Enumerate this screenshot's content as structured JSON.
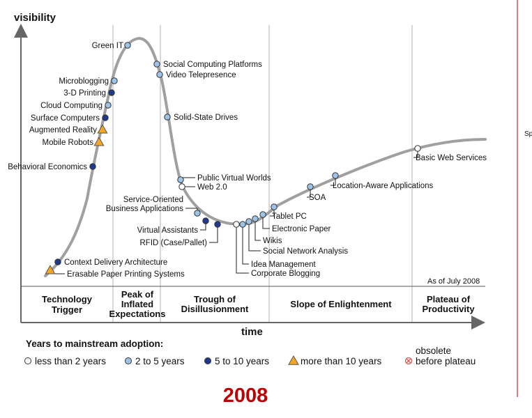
{
  "chart_data": {
    "type": "line",
    "title": "",
    "ylabel": "visibility",
    "xlabel": "time",
    "as_of": "As of July 2008",
    "year": "2008",
    "colors": {
      "curve": "#a0a0a0",
      "less_than_2": "#ffffff",
      "2_to_5": "#9dc3e6",
      "5_to_10": "#1f3a8a",
      "more_than_10": "#f5a623",
      "obsolete": "#d9534f",
      "year": "#c00000",
      "edge_line": "#c00000"
    },
    "phases": [
      {
        "line1": "Technology",
        "line2": "Trigger",
        "line3": ""
      },
      {
        "line1": "Peak of",
        "line2": "Inflated",
        "line3": "Expectations"
      },
      {
        "line1": "Trough of",
        "line2": "Disillusionment",
        "line3": ""
      },
      {
        "line1": "Slope of Enlightenment",
        "line2": "",
        "line3": ""
      },
      {
        "line1": "Plateau of",
        "line2": "Productivity",
        "line3": ""
      }
    ],
    "technologies": [
      {
        "name": "Green IT",
        "years": "2_to_5"
      },
      {
        "name": "Social Computing Platforms",
        "years": "2_to_5"
      },
      {
        "name": "Video Telepresence",
        "years": "2_to_5"
      },
      {
        "name": "Microblogging",
        "years": "2_to_5"
      },
      {
        "name": "3-D Printing",
        "years": "5_to_10"
      },
      {
        "name": "Cloud Computing",
        "years": "2_to_5"
      },
      {
        "name": "Surface Computers",
        "years": "5_to_10"
      },
      {
        "name": "Augmented Reality",
        "years": "more_than_10"
      },
      {
        "name": "Mobile Robots",
        "years": "more_than_10"
      },
      {
        "name": "Solid-State Drives",
        "years": "2_to_5"
      },
      {
        "name": "Behavioral Economics",
        "years": "5_to_10"
      },
      {
        "name": "Public Virtual Worlds",
        "years": "2_to_5"
      },
      {
        "name": "Web 2.0",
        "years": "less_than_2"
      },
      {
        "name": "Basic Web Services",
        "years": "less_than_2"
      },
      {
        "name": "Location-Aware Applications",
        "years": "2_to_5"
      },
      {
        "name": "SOA",
        "years": "2_to_5"
      },
      {
        "name": "Tablet PC",
        "years": "2_to_5"
      },
      {
        "name": "Electronic Paper",
        "years": "2_to_5"
      },
      {
        "name": "Wikis",
        "years": "2_to_5"
      },
      {
        "name": "Social Network Analysis",
        "years": "2_to_5"
      },
      {
        "name": "Idea Management",
        "years": "2_to_5"
      },
      {
        "name": "Corporate Blogging",
        "years": "less_than_2"
      },
      {
        "name": "Service-Oriented Business Applications",
        "line1": "Service-Oriented",
        "line2": "Business Applications",
        "years": "2_to_5"
      },
      {
        "name": "Virtual Assistants",
        "years": "5_to_10"
      },
      {
        "name": "RFID (Case/Pallet)",
        "years": "5_to_10"
      },
      {
        "name": "Context Delivery Architecture",
        "years": "5_to_10"
      },
      {
        "name": "Erasable Paper Printing Systems",
        "years": "more_than_10"
      }
    ],
    "legend": {
      "title": "Years to mainstream adoption:",
      "items": [
        {
          "key": "less_than_2",
          "label": "less than 2 years",
          "label2": ""
        },
        {
          "key": "2_to_5",
          "label": "2 to 5 years",
          "label2": ""
        },
        {
          "key": "5_to_10",
          "label": "5 to 10 years",
          "label2": ""
        },
        {
          "key": "more_than_10",
          "label": "more than 10 years",
          "label2": ""
        },
        {
          "key": "obsolete",
          "label": "obsolete",
          "label2": "before plateau"
        }
      ]
    },
    "cropped_edge_text": "Sp"
  }
}
